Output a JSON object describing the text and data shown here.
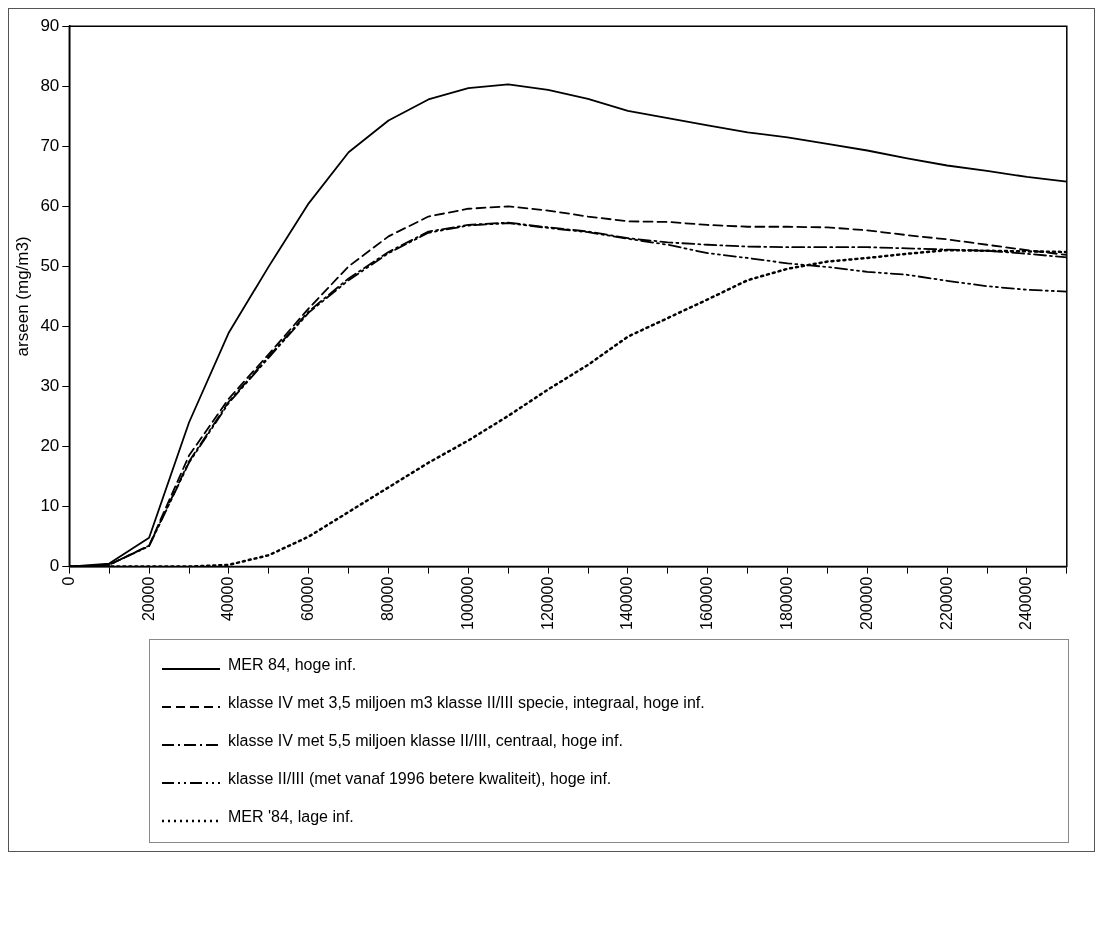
{
  "chart_data": {
    "type": "line",
    "ylabel": "arseen (mg/m3)",
    "xlim": [
      0,
      250000
    ],
    "ylim": [
      0,
      90
    ],
    "xticks": [
      0,
      {
        "value": 10000,
        "label": null
      },
      20000,
      {
        "value": 30000,
        "label": null
      },
      40000,
      {
        "value": 50000,
        "label": null
      },
      60000,
      {
        "value": 70000,
        "label": null
      },
      80000,
      {
        "value": 90000,
        "label": null
      },
      100000,
      {
        "value": 110000,
        "label": null
      },
      120000,
      {
        "value": 130000,
        "label": null
      },
      140000,
      {
        "value": 150000,
        "label": null
      },
      160000,
      {
        "value": 170000,
        "label": null
      },
      180000,
      {
        "value": 190000,
        "label": null
      },
      200000,
      {
        "value": 210000,
        "label": null
      },
      220000,
      {
        "value": 230000,
        "label": null
      },
      240000,
      {
        "value": 250000,
        "label": null
      }
    ],
    "yticks": [
      0,
      10,
      20,
      30,
      40,
      50,
      60,
      70,
      80,
      90
    ],
    "x": [
      0,
      10000,
      20000,
      30000,
      40000,
      50000,
      60000,
      70000,
      80000,
      90000,
      100000,
      110000,
      120000,
      130000,
      140000,
      150000,
      160000,
      170000,
      180000,
      190000,
      200000,
      210000,
      220000,
      230000,
      240000,
      250000
    ],
    "grid": false,
    "legend": "bottom",
    "marker": "none",
    "series": [
      {
        "name": "MER 84, hoge inf.",
        "color": "#000000",
        "line_style": "solid",
        "values": [
          0,
          0.5,
          4.8,
          24,
          39,
          50,
          60.5,
          69,
          74.3,
          77.8,
          79.7,
          80.3,
          79.4,
          77.9,
          75.9,
          74.7,
          73.5,
          72.3,
          71.5,
          70.4,
          69.3,
          68,
          66.8,
          65.9,
          64.9,
          64.1
        ]
      },
      {
        "name": "klasse IV met 3,5 miljoen m3 klasse II/III specie, integraal, hoge  inf.",
        "color": "#000000",
        "line_style": "dashed",
        "values": [
          0,
          0.3,
          3.5,
          18.5,
          28,
          35.4,
          43,
          50,
          55,
          58.3,
          59.6,
          60,
          59.3,
          58.3,
          57.5,
          57.4,
          56.9,
          56.6,
          56.6,
          56.5,
          56,
          55.2,
          54.5,
          53.6,
          52.7,
          51.9
        ]
      },
      {
        "name": "klasse IV met 5,5 miljoen klasse II/III, centraal, hoge inf.",
        "color": "#000000",
        "line_style": "dashed",
        "values": [
          0,
          0.3,
          3.5,
          17.5,
          27.5,
          35,
          42.5,
          48,
          52.4,
          55.8,
          56.9,
          57.3,
          56.5,
          55.8,
          54.7,
          54,
          53.6,
          53.3,
          53.2,
          53.2,
          53.2,
          53,
          52.8,
          52.6,
          52.1,
          51.5
        ]
      },
      {
        "name": "klasse II/III (met vanaf 1996 betere kwaliteit), hoge inf.",
        "color": "#000000",
        "line_style": "dashed",
        "values": [
          0,
          0.3,
          3.4,
          17.3,
          27.3,
          34.8,
          42.3,
          47.7,
          52.2,
          55.6,
          56.8,
          57.2,
          56.4,
          55.7,
          54.6,
          53.6,
          52.2,
          51.4,
          50.5,
          49.9,
          49.1,
          48.6,
          47.6,
          46.7,
          46.1,
          45.8
        ]
      },
      {
        "name": "MER '84, lage inf.",
        "color": "#000000",
        "line_style": "dotted",
        "values": [
          0,
          0,
          0,
          0,
          0.3,
          1.9,
          5,
          9.1,
          13.2,
          17.3,
          21,
          25.1,
          29.5,
          33.6,
          38.3,
          41.4,
          44.5,
          47.7,
          49.6,
          50.8,
          51.4,
          52.1,
          52.7,
          52.6,
          52.5,
          52.4
        ]
      }
    ]
  }
}
